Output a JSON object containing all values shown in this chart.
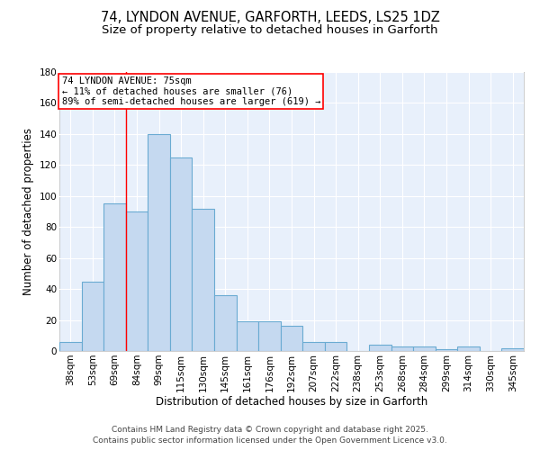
{
  "title_line1": "74, LYNDON AVENUE, GARFORTH, LEEDS, LS25 1DZ",
  "title_line2": "Size of property relative to detached houses in Garforth",
  "xlabel": "Distribution of detached houses by size in Garforth",
  "ylabel": "Number of detached properties",
  "categories": [
    "38sqm",
    "53sqm",
    "69sqm",
    "84sqm",
    "99sqm",
    "115sqm",
    "130sqm",
    "145sqm",
    "161sqm",
    "176sqm",
    "192sqm",
    "207sqm",
    "222sqm",
    "238sqm",
    "253sqm",
    "268sqm",
    "284sqm",
    "299sqm",
    "314sqm",
    "330sqm",
    "345sqm"
  ],
  "values": [
    6,
    45,
    95,
    90,
    140,
    125,
    92,
    36,
    19,
    19,
    16,
    6,
    6,
    0,
    4,
    3,
    3,
    1,
    3,
    0,
    2
  ],
  "bar_color": "#c5d9f0",
  "bar_edge_color": "#6aabd2",
  "red_line_x": 2.5,
  "annotation_text": "74 LYNDON AVENUE: 75sqm\n← 11% of detached houses are smaller (76)\n89% of semi-detached houses are larger (619) →",
  "annotation_box_color": "white",
  "annotation_box_edge_color": "red",
  "ylim": [
    0,
    180
  ],
  "yticks": [
    0,
    20,
    40,
    60,
    80,
    100,
    120,
    140,
    160,
    180
  ],
  "plot_bg_color": "#e8f0fb",
  "grid_color": "#ffffff",
  "footer_line1": "Contains HM Land Registry data © Crown copyright and database right 2025.",
  "footer_line2": "Contains public sector information licensed under the Open Government Licence v3.0.",
  "title_fontsize": 10.5,
  "subtitle_fontsize": 9.5,
  "axis_label_fontsize": 8.5,
  "tick_fontsize": 7.5,
  "annotation_fontsize": 7.5,
  "footer_fontsize": 6.5
}
